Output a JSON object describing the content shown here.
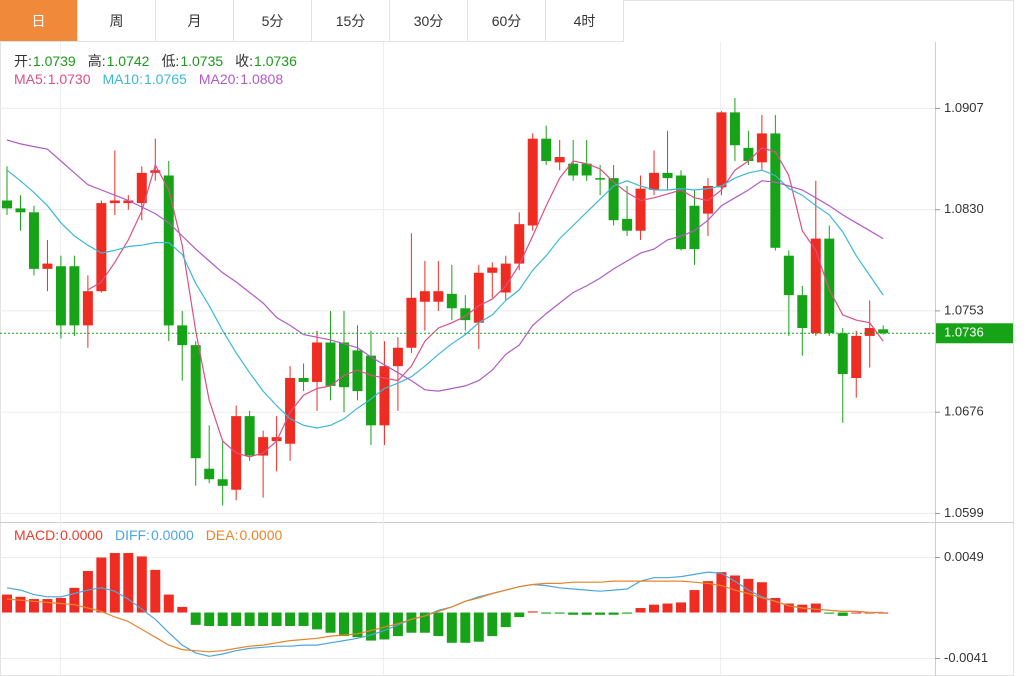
{
  "tabs": [
    "日",
    "周",
    "月",
    "5分",
    "15分",
    "30分",
    "60分",
    "4时"
  ],
  "active_tab": 0,
  "chart_data": [
    {
      "type": "candlestick",
      "readout": [
        {
          "label": "开:",
          "value": "1.0739"
        },
        {
          "label": "高:",
          "value": "1.0742"
        },
        {
          "label": "低:",
          "value": "1.0735"
        },
        {
          "label": "收:",
          "value": "1.0736"
        }
      ],
      "readout_value_color": "#1a9a1a",
      "up_color": "#ee2c22",
      "down_color": "#17a317",
      "open": [
        1.0837,
        1.0831,
        1.0828,
        1.0785,
        1.0787,
        1.0787,
        1.0742,
        1.0768,
        1.0835,
        1.0835,
        1.0835,
        1.0858,
        1.0856,
        1.0742,
        1.0727,
        1.0633,
        1.0625,
        1.0617,
        1.0673,
        1.0643,
        1.0654,
        1.0652,
        1.0702,
        1.0699,
        1.0729,
        1.0729,
        1.0723,
        1.0719,
        1.0666,
        1.0711,
        1.0725,
        1.076,
        1.076,
        1.0766,
        1.0755,
        1.0744,
        1.0782,
        1.0767,
        1.0789,
        1.0818,
        1.0884,
        1.0866,
        1.0865,
        1.0865,
        1.0854,
        1.0854,
        1.0823,
        1.0814,
        1.0845,
        1.0858,
        1.0856,
        1.0833,
        1.0827,
        1.0847,
        1.0904,
        1.0877,
        1.0866,
        1.0888,
        1.0795,
        1.0765,
        1.0736,
        1.0808,
        1.0736,
        1.0702,
        1.0734,
        1.0739
      ],
      "high": [
        1.0863,
        1.0841,
        1.0833,
        1.0807,
        1.0795,
        1.0795,
        1.078,
        1.0837,
        1.0875,
        1.0841,
        1.0863,
        1.0884,
        1.0867,
        1.0753,
        1.073,
        1.0666,
        1.0654,
        1.0681,
        1.0677,
        1.0662,
        1.0673,
        1.0711,
        1.0713,
        1.0738,
        1.0753,
        1.0753,
        1.0742,
        1.0738,
        1.073,
        1.0733,
        1.0812,
        1.0791,
        1.0791,
        1.0788,
        1.0765,
        1.0788,
        1.079,
        1.0795,
        1.0828,
        1.0888,
        1.0894,
        1.0883,
        1.0883,
        1.0883,
        1.0864,
        1.0864,
        1.0848,
        1.0856,
        1.0875,
        1.089,
        1.086,
        1.0845,
        1.0854,
        1.0905,
        1.0915,
        1.089,
        1.0902,
        1.0902,
        1.0799,
        1.0772,
        1.0852,
        1.0818,
        1.074,
        1.0738,
        1.0761,
        1.0742
      ],
      "low": [
        1.0826,
        1.0814,
        1.078,
        1.0768,
        1.0732,
        1.0734,
        1.0725,
        1.0767,
        1.0826,
        1.083,
        1.0822,
        1.0852,
        1.073,
        1.07,
        1.062,
        1.0622,
        1.0605,
        1.0609,
        1.0639,
        1.0611,
        1.0631,
        1.0639,
        1.0692,
        1.0677,
        1.0685,
        1.0676,
        1.0685,
        1.0651,
        1.0651,
        1.0677,
        1.0721,
        1.0738,
        1.0753,
        1.0746,
        1.0738,
        1.0724,
        1.0763,
        1.0761,
        1.0784,
        1.0814,
        1.0864,
        1.086,
        1.0852,
        1.0852,
        1.0841,
        1.0818,
        1.081,
        1.0807,
        1.0841,
        1.0845,
        1.0799,
        1.0788,
        1.081,
        1.0841,
        1.0867,
        1.0864,
        1.086,
        1.0799,
        1.0734,
        1.0719,
        1.0734,
        1.0734,
        1.0668,
        1.0687,
        1.071,
        1.0735
      ],
      "close": [
        1.0831,
        1.0828,
        1.0785,
        1.0789,
        1.0742,
        1.0742,
        1.0768,
        1.0835,
        1.0837,
        1.0837,
        1.0858,
        1.086,
        1.0742,
        1.0727,
        1.0641,
        1.0625,
        1.062,
        1.0673,
        1.0643,
        1.0657,
        1.0657,
        1.0702,
        1.0699,
        1.0729,
        1.0696,
        1.0695,
        1.0692,
        1.0666,
        1.0711,
        1.0725,
        1.0763,
        1.0768,
        1.0768,
        1.0755,
        1.0746,
        1.0782,
        1.0786,
        1.0789,
        1.0819,
        1.0884,
        1.0867,
        1.087,
        1.0856,
        1.0856,
        1.0853,
        1.0822,
        1.0814,
        1.0846,
        1.0858,
        1.0854,
        1.08,
        1.08,
        1.0848,
        1.0904,
        1.0879,
        1.0867,
        1.0888,
        1.0801,
        1.0765,
        1.074,
        1.0808,
        1.0736,
        1.0705,
        1.0734,
        1.074,
        1.0736
      ],
      "series": [
        {
          "name": "MA5:",
          "readout": "1.0730",
          "color": "#dd4f86",
          "values": [
            null,
            null,
            null,
            null,
            null,
            null,
            1.0769,
            1.0775,
            1.079,
            1.0807,
            1.0829,
            1.0864,
            1.0845,
            1.0803,
            1.0738,
            1.0685,
            1.0654,
            1.0645,
            1.0642,
            1.0645,
            1.0654,
            1.0676,
            1.0689,
            1.0694,
            1.0696,
            1.0704,
            1.0708,
            1.0704,
            1.0702,
            1.07,
            1.0711,
            1.073,
            1.074,
            1.0744,
            1.0749,
            1.0757,
            1.0762,
            1.0772,
            1.0788,
            1.081,
            1.0833,
            1.0854,
            1.0867,
            1.0865,
            1.0861,
            1.0851,
            1.0843,
            1.0837,
            1.0839,
            1.0842,
            1.0845,
            1.0839,
            1.0837,
            1.0845,
            1.086,
            1.0867,
            1.0877,
            1.0874,
            1.0856,
            1.0814,
            1.0799,
            1.0769,
            1.075,
            1.0746,
            1.0744,
            1.073
          ]
        },
        {
          "name": "MA10:",
          "readout": "1.0765",
          "color": "#3db8d6",
          "values": [
            1.086,
            1.0852,
            1.0843,
            1.0833,
            1.082,
            1.081,
            1.0803,
            1.0797,
            1.0799,
            1.0802,
            1.0803,
            1.0805,
            1.0805,
            1.0796,
            1.0774,
            1.0757,
            1.0738,
            1.0721,
            1.0706,
            1.0692,
            1.0681,
            1.0671,
            1.0666,
            1.0664,
            1.0666,
            1.0671,
            1.0679,
            1.0686,
            1.0694,
            1.0698,
            1.0703,
            1.0711,
            1.072,
            1.0728,
            1.0735,
            1.0744,
            1.075,
            1.0761,
            1.0769,
            1.0784,
            1.0795,
            1.0808,
            1.0818,
            1.0828,
            1.0838,
            1.0848,
            1.0852,
            1.0848,
            1.0845,
            1.0845,
            1.0846,
            1.0845,
            1.0846,
            1.0848,
            1.0854,
            1.0858,
            1.086,
            1.0856,
            1.0846,
            1.0841,
            1.0833,
            1.0826,
            1.0813,
            1.0795,
            1.078,
            1.0765
          ]
        },
        {
          "name": "MA20:",
          "readout": "1.0808",
          "color": "#b05cc2",
          "values": [
            1.0883,
            1.088,
            1.0878,
            1.0876,
            1.0867,
            1.0858,
            1.0849,
            1.0845,
            1.0841,
            1.0837,
            1.0832,
            1.0827,
            1.082,
            1.081,
            1.08,
            1.0791,
            1.0782,
            1.0775,
            1.0767,
            1.0759,
            1.0748,
            1.0742,
            1.0735,
            1.0733,
            1.0731,
            1.0728,
            1.0725,
            1.0718,
            1.0712,
            1.0706,
            1.07,
            1.0693,
            1.0692,
            1.0694,
            1.0696,
            1.07,
            1.0708,
            1.072,
            1.0727,
            1.0742,
            1.0751,
            1.0759,
            1.0767,
            1.0772,
            1.0778,
            1.0785,
            1.0791,
            1.0797,
            1.08,
            1.0807,
            1.081,
            1.0814,
            1.0822,
            1.0833,
            1.0839,
            1.0845,
            1.0852,
            1.0851,
            1.0848,
            1.0845,
            1.0839,
            1.0833,
            1.0826,
            1.082,
            1.0814,
            1.0808
          ]
        }
      ],
      "ylim": [
        1.0594,
        1.0956
      ],
      "yticks": [
        1.0599,
        1.0676,
        1.0753,
        {
          "value": 1.083,
          "label": "1.0830"
        },
        1.0907
      ],
      "grid": true,
      "last_price": 1.0736,
      "last_price_color": "#17a317"
    },
    {
      "type": "macd",
      "histogram": {
        "name": "MACD:",
        "readout": "0.0000",
        "color": "#e8402f",
        "up_color": "#ee2c22",
        "down_color": "#17a317",
        "values": [
          0.0016,
          0.0014,
          0.0012,
          0.0012,
          0.0013,
          0.0022,
          0.0037,
          0.0049,
          0.0053,
          0.0053,
          0.005,
          0.0038,
          0.0016,
          0.0005,
          -0.0011,
          -0.0012,
          -0.0012,
          -0.0012,
          -0.0012,
          -0.0012,
          -0.0012,
          -0.0012,
          -0.0012,
          -0.0015,
          -0.0018,
          -0.0021,
          -0.0022,
          -0.0025,
          -0.0024,
          -0.0021,
          -0.0018,
          -0.0018,
          -0.0021,
          -0.0027,
          -0.0027,
          -0.0026,
          -0.0021,
          -0.0013,
          -0.0004,
          0.0001,
          -0.0001,
          -0.0001,
          -0.0002,
          -0.0002,
          -0.0002,
          -0.0002,
          -0.0001,
          0.0004,
          0.0007,
          0.0008,
          0.0009,
          0.002,
          0.0028,
          0.0036,
          0.0033,
          0.003,
          0.0027,
          0.0013,
          0.0008,
          0.0007,
          0.0008,
          -0.0001,
          -0.0003,
          0.0,
          0.0,
          0.0
        ]
      },
      "series": [
        {
          "name": "DIFF:",
          "readout": "0.0000",
          "color": "#4da6da",
          "values": [
            0.0022,
            0.002,
            0.0016,
            0.0014,
            0.0014,
            0.0017,
            0.002,
            0.0022,
            0.0019,
            0.0012,
            0.0003,
            -0.0006,
            -0.0018,
            -0.0029,
            -0.0036,
            -0.0039,
            -0.0037,
            -0.0034,
            -0.0032,
            -0.0031,
            -0.003,
            -0.003,
            -0.0029,
            -0.0029,
            -0.0027,
            -0.0025,
            -0.0023,
            -0.002,
            -0.0016,
            -0.0011,
            -0.0006,
            -0.0003,
            0.0002,
            0.0005,
            0.001,
            0.0014,
            0.0017,
            0.002,
            0.0023,
            0.0025,
            0.0024,
            0.0022,
            0.0021,
            0.002,
            0.0019,
            0.002,
            0.0021,
            0.0028,
            0.0031,
            0.0031,
            0.0032,
            0.0034,
            0.0036,
            0.0035,
            0.0028,
            0.002,
            0.0014,
            0.001,
            0.0006,
            0.0004,
            0.0003,
            0.0002,
            0.0001,
            0.0001,
            0.0,
            0.0
          ]
        },
        {
          "name": "DEA:",
          "readout": "0.0000",
          "color": "#e8842a",
          "values": [
            0.0012,
            0.0011,
            0.001,
            0.0009,
            0.0008,
            0.0007,
            0.0004,
            0.0001,
            -0.0004,
            -0.0008,
            -0.0015,
            -0.0022,
            -0.0029,
            -0.0033,
            -0.0034,
            -0.0035,
            -0.0034,
            -0.0032,
            -0.003,
            -0.0029,
            -0.0027,
            -0.0025,
            -0.0024,
            -0.0023,
            -0.0021,
            -0.002,
            -0.0019,
            -0.0016,
            -0.0013,
            -0.001,
            -0.0006,
            -0.0003,
            0.0001,
            0.0005,
            0.001,
            0.0013,
            0.0017,
            0.002,
            0.0023,
            0.0025,
            0.0026,
            0.0026,
            0.0027,
            0.0027,
            0.0027,
            0.0028,
            0.0028,
            0.0028,
            0.0028,
            0.0028,
            0.0028,
            0.0027,
            0.0026,
            0.0024,
            0.002,
            0.0017,
            0.0013,
            0.001,
            0.0006,
            0.0004,
            0.0003,
            0.0002,
            0.0001,
            0.0001,
            0.0,
            0.0
          ]
        }
      ],
      "ylim": [
        -0.0053,
        0.0078
      ],
      "yticks": [
        -0.0041,
        0.0049
      ]
    }
  ]
}
